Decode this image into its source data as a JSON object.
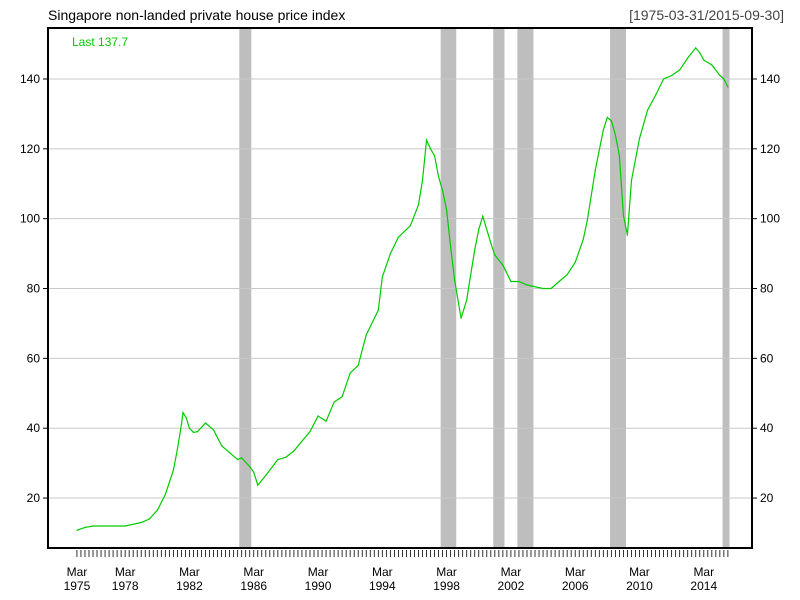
{
  "chart_data": {
    "type": "line",
    "title": "Singapore non-landed private house price index",
    "date_range": "[1975-03-31/2015-09-30]",
    "last_label": "Last 137.7",
    "xlabel": "",
    "ylabel": "",
    "xlim": [
      1973.2,
      2017.0
    ],
    "ylim": [
      5.7,
      154.6
    ],
    "yticks": [
      20,
      40,
      60,
      80,
      100,
      120,
      140
    ],
    "xticks": [
      {
        "value": 1975,
        "label": [
          "Mar",
          "1975"
        ]
      },
      {
        "value": 1978,
        "label": [
          "Mar",
          "1978"
        ]
      },
      {
        "value": 1982,
        "label": [
          "Mar",
          "1982"
        ]
      },
      {
        "value": 1986,
        "label": [
          "Mar",
          "1986"
        ]
      },
      {
        "value": 1990,
        "label": [
          "Mar",
          "1990"
        ]
      },
      {
        "value": 1994,
        "label": [
          "Mar",
          "1994"
        ]
      },
      {
        "value": 1998,
        "label": [
          "Mar",
          "1998"
        ]
      },
      {
        "value": 2002,
        "label": [
          "Mar",
          "2002"
        ]
      },
      {
        "value": 2006,
        "label": [
          "Mar",
          "2006"
        ]
      },
      {
        "value": 2010,
        "label": [
          "Mar",
          "2010"
        ]
      },
      {
        "value": 2014,
        "label": [
          "Mar",
          "2014"
        ]
      }
    ],
    "grid": true,
    "shaded_periods": [
      [
        1985.1,
        1985.85
      ],
      [
        1997.63,
        1998.6
      ],
      [
        2000.9,
        2001.6
      ],
      [
        2002.4,
        2003.4
      ],
      [
        2008.17,
        2009.16
      ],
      [
        2015.17,
        2015.6
      ]
    ],
    "series": [
      {
        "name": "Singapore non-landed private house price index",
        "color": "#00cc00",
        "points": [
          [
            1975.0,
            10.8
          ],
          [
            1975.5,
            11.6
          ],
          [
            1976,
            12.0
          ],
          [
            1977,
            12.0
          ],
          [
            1978,
            12.0
          ],
          [
            1979,
            13.0
          ],
          [
            1979.5,
            14
          ],
          [
            1980,
            16.5
          ],
          [
            1980.5,
            21
          ],
          [
            1981,
            28
          ],
          [
            1981.25,
            34
          ],
          [
            1981.5,
            41
          ],
          [
            1981.6,
            44.5
          ],
          [
            1981.8,
            43
          ],
          [
            1982,
            40
          ],
          [
            1982.25,
            38.8
          ],
          [
            1982.5,
            39
          ],
          [
            1983,
            41.5
          ],
          [
            1983.5,
            39.5
          ],
          [
            1984,
            35
          ],
          [
            1984.5,
            33
          ],
          [
            1985,
            31
          ],
          [
            1985.25,
            31.5
          ],
          [
            1985.75,
            29
          ],
          [
            1986,
            27.4
          ],
          [
            1986.25,
            23.7
          ],
          [
            1986.75,
            26.5
          ],
          [
            1987,
            28
          ],
          [
            1987.5,
            31
          ],
          [
            1988,
            31.7
          ],
          [
            1988.5,
            33.5
          ],
          [
            1989,
            36.3
          ],
          [
            1989.5,
            39
          ],
          [
            1990,
            43.5
          ],
          [
            1990.5,
            42
          ],
          [
            1991,
            47.5
          ],
          [
            1991.5,
            49
          ],
          [
            1992,
            55.8
          ],
          [
            1992.5,
            58
          ],
          [
            1993,
            66.7
          ],
          [
            1993.75,
            73.8
          ],
          [
            1994,
            83.3
          ],
          [
            1994.5,
            90
          ],
          [
            1995,
            94.7
          ],
          [
            1995.75,
            98
          ],
          [
            1996.25,
            104
          ],
          [
            1996.5,
            111
          ],
          [
            1996.75,
            122.5
          ],
          [
            1997.0,
            120
          ],
          [
            1997.25,
            118
          ],
          [
            1997.5,
            112
          ],
          [
            1997.75,
            108
          ],
          [
            1998,
            102.5
          ],
          [
            1998.25,
            92
          ],
          [
            1998.5,
            82.4
          ],
          [
            1998.9,
            71.5
          ],
          [
            1999.25,
            76.7
          ],
          [
            1999.5,
            84
          ],
          [
            1999.75,
            91
          ],
          [
            2000,
            97
          ],
          [
            2000.25,
            100.7
          ],
          [
            2000.75,
            93
          ],
          [
            2001,
            89.6
          ],
          [
            2001.5,
            86.7
          ],
          [
            2002,
            82
          ],
          [
            2002.5,
            82
          ],
          [
            2003,
            81
          ],
          [
            2004,
            80
          ],
          [
            2004.5,
            80
          ],
          [
            2005,
            82
          ],
          [
            2005.5,
            84
          ],
          [
            2006,
            87.5
          ],
          [
            2006.5,
            94
          ],
          [
            2006.75,
            99.5
          ],
          [
            2007.25,
            113.9
          ],
          [
            2007.75,
            125.4
          ],
          [
            2008,
            129
          ],
          [
            2008.25,
            128
          ],
          [
            2008.5,
            124
          ],
          [
            2008.75,
            118
          ],
          [
            2009.0,
            101
          ],
          [
            2009.25,
            95.3
          ],
          [
            2009.5,
            111
          ],
          [
            2010,
            123
          ],
          [
            2010.5,
            131
          ],
          [
            2011,
            135.4
          ],
          [
            2011.5,
            140
          ],
          [
            2012,
            141
          ],
          [
            2012.5,
            142.6
          ],
          [
            2013,
            146
          ],
          [
            2013.5,
            148.9
          ],
          [
            2013.75,
            147.5
          ],
          [
            2014,
            145.4
          ],
          [
            2014.5,
            144
          ],
          [
            2015,
            141
          ],
          [
            2015.25,
            140
          ],
          [
            2015.5,
            137.7
          ]
        ]
      }
    ]
  }
}
